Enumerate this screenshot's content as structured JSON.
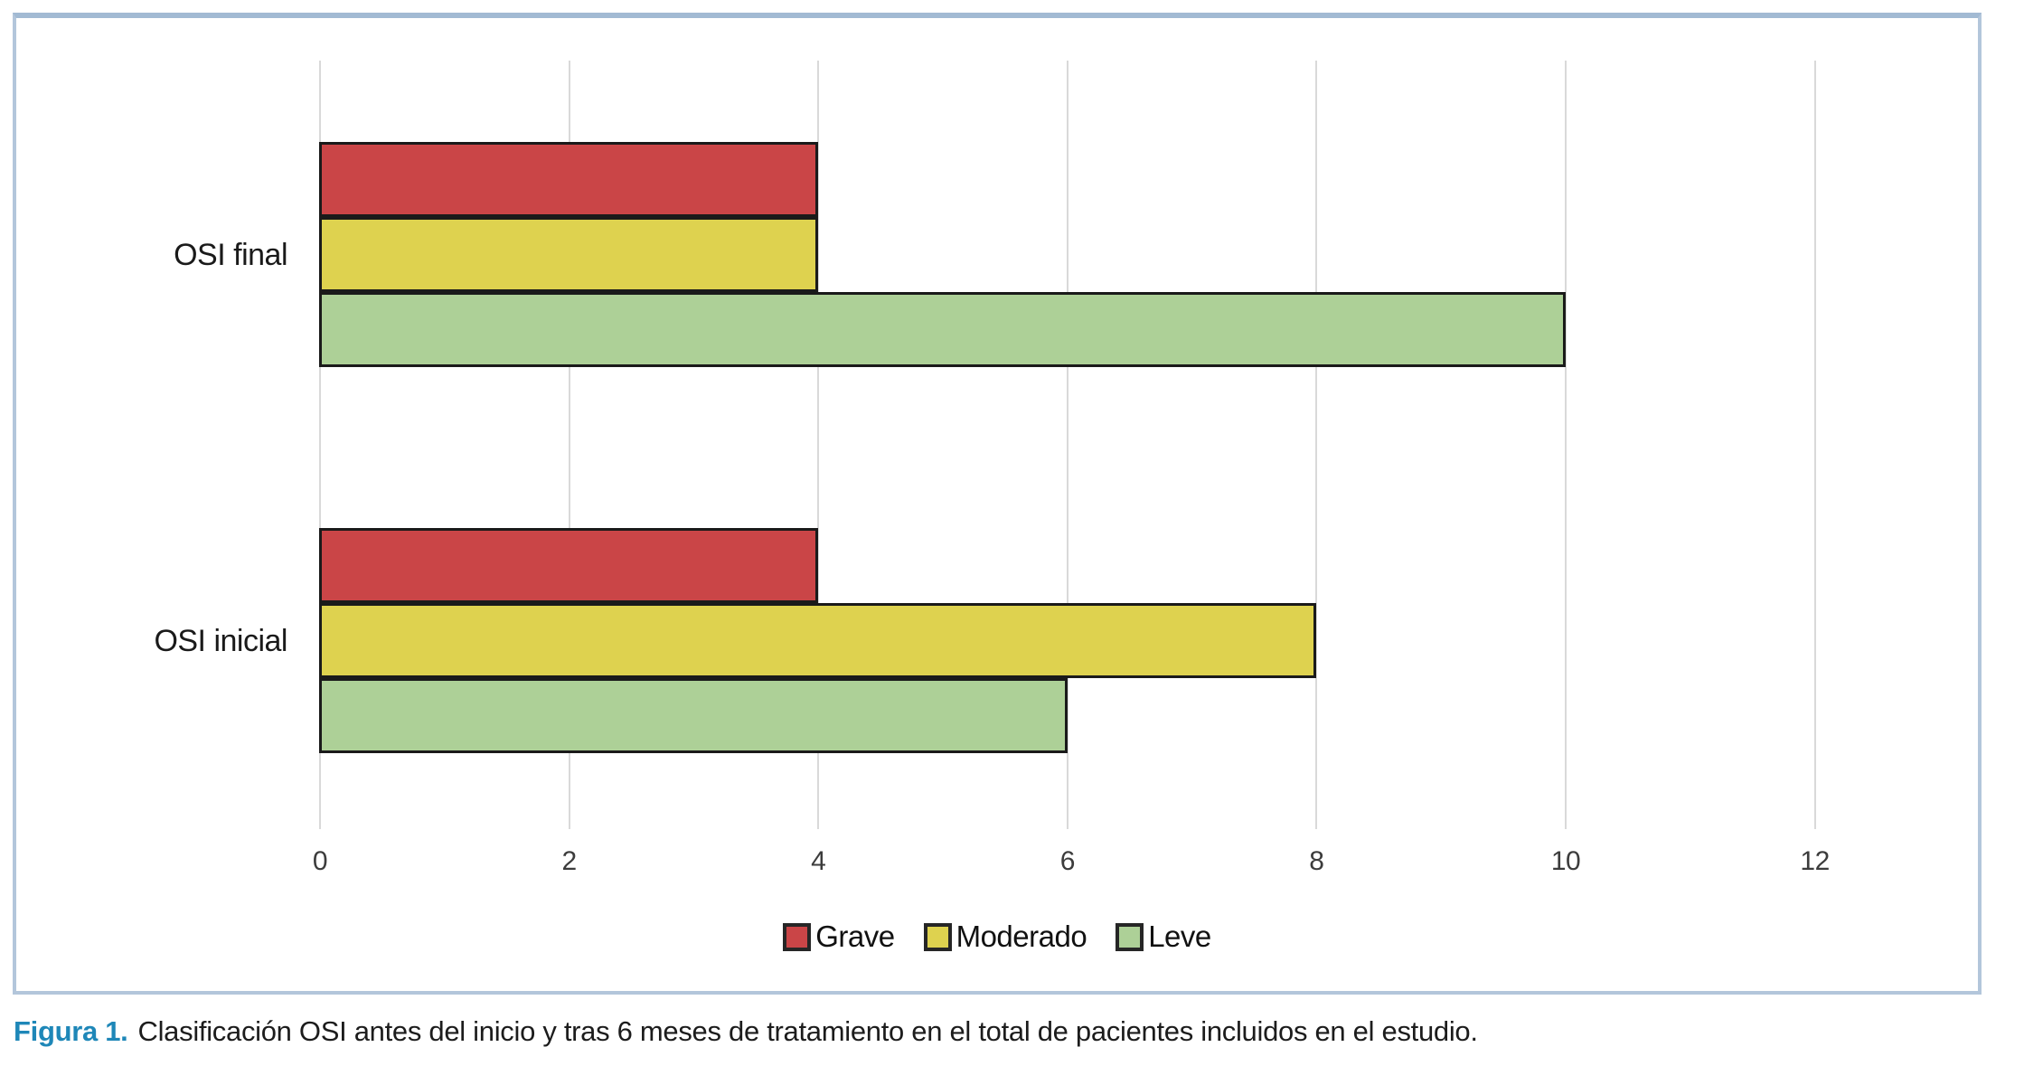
{
  "figure": {
    "caption_label": "Figura 1.",
    "caption_text": "Clasificación OSI antes del inicio y tras 6 meses de tratamiento en el total de pacientes incluidos en el estudio."
  },
  "colors": {
    "grave": "#ca4547",
    "moderado": "#ded24f",
    "leve": "#add097",
    "bar_outline": "#1a1a1a",
    "gridline": "#d9d9d9",
    "frame_border": "#a9bed8",
    "caption_label_color": "#1e87b8",
    "tick_text": "#3c3c3c"
  },
  "chart_data": {
    "type": "bar",
    "orientation": "horizontal",
    "title": "",
    "xlabel": "",
    "ylabel": "",
    "categories": [
      "OSI final",
      "OSI inicial"
    ],
    "series": [
      {
        "name": "Grave",
        "color": "#ca4547",
        "values": [
          4,
          4
        ]
      },
      {
        "name": "Moderado",
        "color": "#ded24f",
        "values": [
          4,
          8
        ]
      },
      {
        "name": "Leve",
        "color": "#add097",
        "values": [
          10,
          6
        ]
      }
    ],
    "x_ticks": [
      0,
      2,
      4,
      6,
      8,
      10,
      12
    ],
    "xlim": [
      0,
      13.3
    ],
    "grid": "vertical-gridlines-only",
    "legend_position": "bottom-center",
    "legend_entries": [
      "Grave",
      "Moderado",
      "Leve"
    ]
  }
}
